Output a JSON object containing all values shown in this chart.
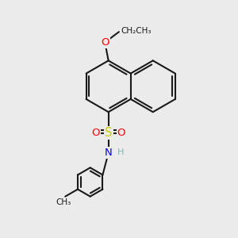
{
  "bg_color": "#ebebeb",
  "bond_color": "#1a1a1a",
  "bond_width": 1.5,
  "atom_colors": {
    "O": "#ff0000",
    "S": "#cccc00",
    "N": "#0000ff",
    "H": "#7ab5b5",
    "C": "#1a1a1a"
  },
  "figsize": [
    3.0,
    3.0
  ],
  "dpi": 100
}
